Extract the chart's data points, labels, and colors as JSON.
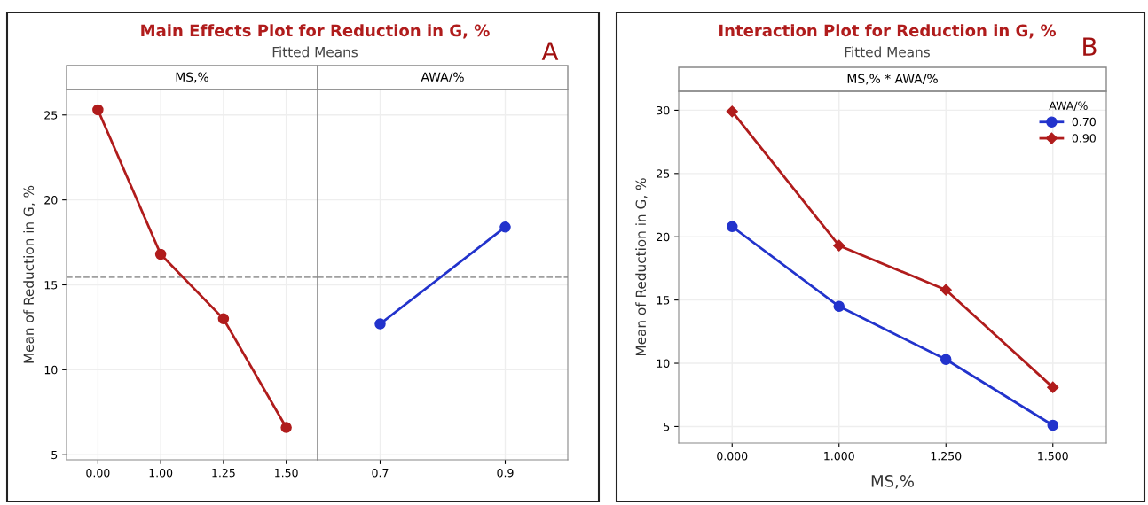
{
  "chart_data": [
    {
      "type": "line",
      "title": "Main Effects Plot for Reduction in G, %",
      "subtitle": "Fitted Means",
      "x2label": "MS,%",
      "ylabel": "Mean of Reduction in G, %",
      "annotations": [
        "A"
      ],
      "categories": [
        "0.00",
        "1.00",
        "1.25",
        "1.50"
      ],
      "series": [
        {
          "color": "#b01c1c",
          "values": [
            25.3,
            16.8,
            13.0,
            6.6
          ]
        }
      ],
      "marker": "circle",
      "ylim": [
        4.7,
        26.5
      ],
      "yticks": [
        5,
        10,
        15,
        20,
        25
      ],
      "grid": true,
      "ref_lines": [
        {
          "axis": "y",
          "value": 15.45,
          "color": "#a0a0a0",
          "line_style": "dashed"
        }
      ]
    },
    {
      "type": "line",
      "x2label": "AWA/%",
      "categories": [
        "0.7",
        "0.9"
      ],
      "series": [
        {
          "color": "#2233cc",
          "values": [
            12.7,
            18.4
          ]
        }
      ],
      "marker": "circle",
      "ylim": [
        4.7,
        26.5
      ],
      "yticks": [
        5,
        10,
        15,
        20,
        25
      ],
      "grid": true,
      "tick_labels": "x",
      "ref_lines": [
        {
          "axis": "y",
          "value": 15.45,
          "color": "#a0a0a0",
          "line_style": "dashed"
        }
      ]
    },
    {
      "type": "line",
      "title": "Interaction Plot for Reduction in G, %",
      "subtitle": "Fitted Means",
      "x2label": "MS,% * AWA/%",
      "xlabel": "MS,%",
      "ylabel": "Mean of Reduction in G, %",
      "annotations": [
        "B"
      ],
      "legend_title": "AWA/%",
      "legend": "top right",
      "categories": [
        "0.000",
        "1.000",
        "1.250",
        "1.500"
      ],
      "series": [
        {
          "name": "0.70",
          "color": "#2233cc",
          "marker": "circle",
          "values": [
            20.8,
            14.5,
            10.3,
            5.1
          ]
        },
        {
          "name": "0.90",
          "color": "#b01c1c",
          "marker": "diamond",
          "values": [
            29.9,
            19.3,
            15.8,
            8.1
          ]
        }
      ],
      "ylim": [
        3.7,
        31.5
      ],
      "yticks": [
        5,
        10,
        15,
        20,
        25,
        30
      ],
      "grid": true
    }
  ]
}
